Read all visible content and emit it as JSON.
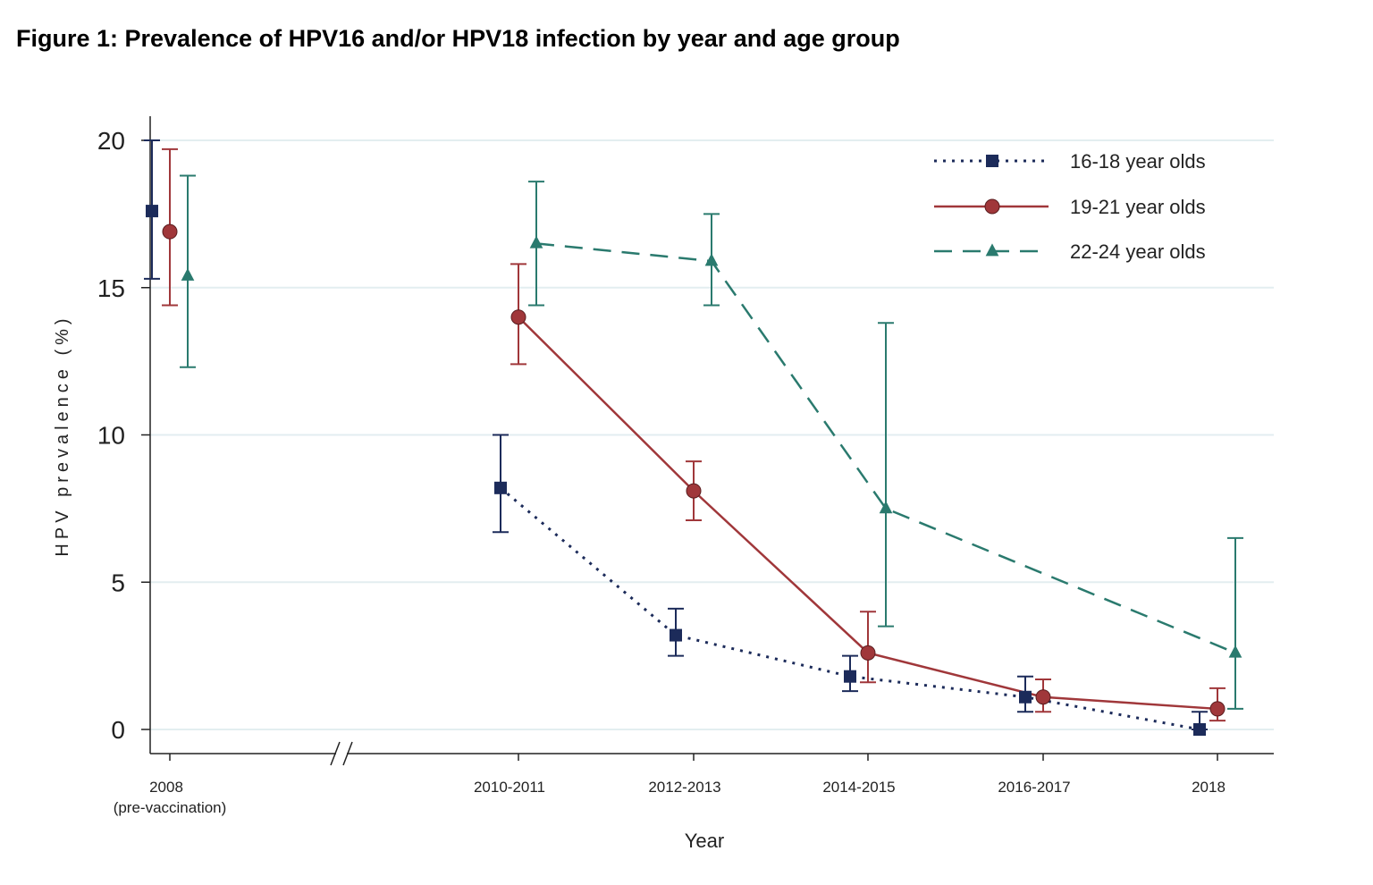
{
  "title": "Figure 1: Prevalence of HPV16 and/or HPV18 infection by year and age group",
  "chart_data": {
    "type": "line",
    "title": "Figure 1: Prevalence of HPV16 and/or HPV18 infection by year and age group",
    "xlabel": "Year",
    "ylabel": "HPV prevalence (%)",
    "ylim": [
      0,
      20
    ],
    "yticks": [
      0,
      5,
      10,
      15,
      20
    ],
    "grid": "horizontal",
    "legend_position": "top-right",
    "axis_break": "between 2008 and 2010-2011",
    "categories": [
      {
        "label": "2008",
        "sublabel": "(pre-vaccination)"
      },
      {
        "label": "2010-2011",
        "sublabel": ""
      },
      {
        "label": "2012-2013",
        "sublabel": ""
      },
      {
        "label": "2014-2015",
        "sublabel": ""
      },
      {
        "label": "2016-2017",
        "sublabel": ""
      },
      {
        "label": "2018",
        "sublabel": ""
      }
    ],
    "series": [
      {
        "name": "16-18 year olds",
        "color": "#1c2b5a",
        "marker": "square",
        "line_style": "dotted",
        "values": [
          17.6,
          8.2,
          3.2,
          1.8,
          1.1,
          0.0
        ],
        "ci_low": [
          15.3,
          6.7,
          2.5,
          1.3,
          0.6,
          0.0
        ],
        "ci_high": [
          20.0,
          10.0,
          4.1,
          2.5,
          1.8,
          0.6
        ],
        "connect_first": false
      },
      {
        "name": "19-21 year olds",
        "color": "#a0373a",
        "marker": "circle",
        "line_style": "solid",
        "values": [
          16.9,
          14.0,
          8.1,
          2.6,
          1.1,
          0.7
        ],
        "ci_low": [
          14.4,
          12.4,
          7.1,
          1.6,
          0.6,
          0.3
        ],
        "ci_high": [
          19.7,
          15.8,
          9.1,
          4.0,
          1.7,
          1.4
        ],
        "connect_first": false
      },
      {
        "name": "22-24 year olds",
        "color": "#2a7a6e",
        "marker": "triangle",
        "line_style": "dashed",
        "values": [
          15.4,
          16.5,
          15.9,
          7.5,
          null,
          2.6
        ],
        "ci_low": [
          12.3,
          14.4,
          14.4,
          3.5,
          null,
          0.7
        ],
        "ci_high": [
          18.8,
          18.6,
          17.5,
          13.8,
          null,
          6.5
        ],
        "connect_first": false
      }
    ]
  }
}
